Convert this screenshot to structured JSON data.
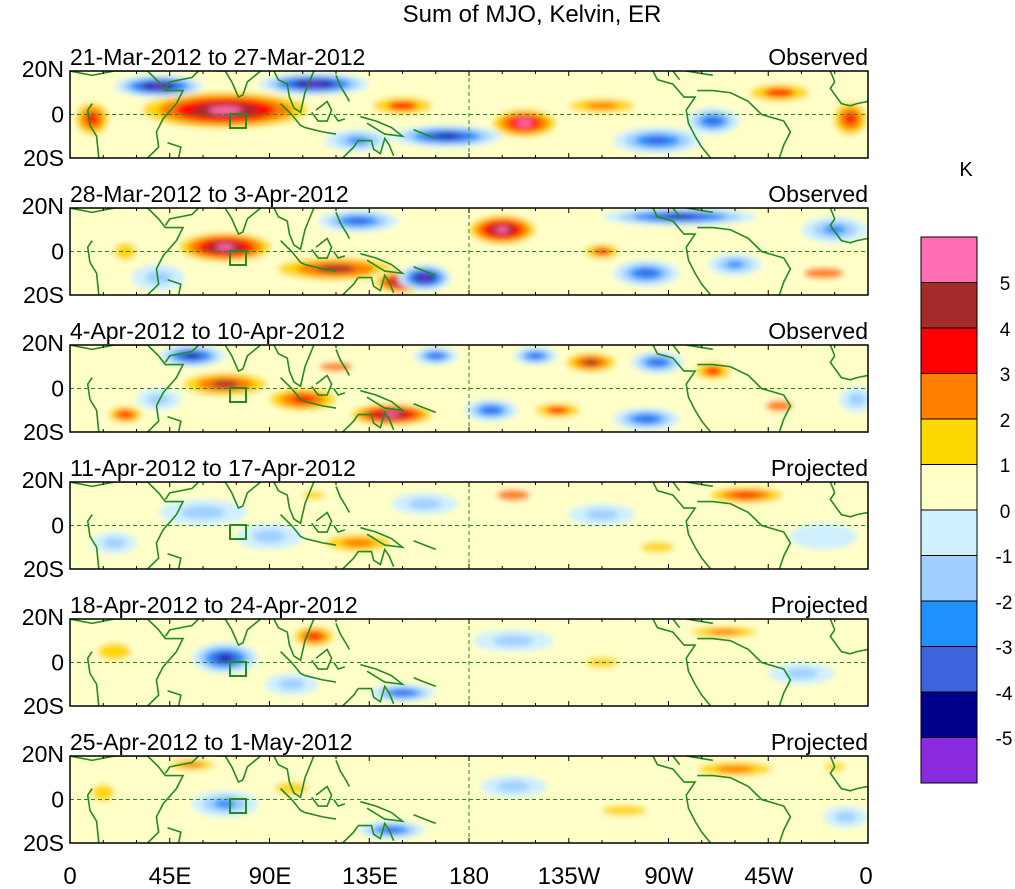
{
  "title": "Sum of MJO, Kelvin, ER",
  "unit_label": "K",
  "panels": [
    {
      "dates": "21-Mar-2012 to 27-Mar-2012",
      "status": "Observed"
    },
    {
      "dates": "28-Mar-2012 to 3-Apr-2012",
      "status": "Observed"
    },
    {
      "dates": "4-Apr-2012 to 10-Apr-2012",
      "status": "Observed"
    },
    {
      "dates": "11-Apr-2012 to 17-Apr-2012",
      "status": "Projected"
    },
    {
      "dates": "18-Apr-2012 to 24-Apr-2012",
      "status": "Projected"
    },
    {
      "dates": "25-Apr-2012 to 1-May-2012",
      "status": "Projected"
    }
  ],
  "lat_labels": [
    "20N",
    "0",
    "20S"
  ],
  "lon_labels": [
    "0",
    "45E",
    "90E",
    "135E",
    "180",
    "135W",
    "90W",
    "45W",
    "0"
  ],
  "colorbar": {
    "labels": [
      "5",
      "4",
      "3",
      "2",
      "1",
      "0",
      "-1",
      "-2",
      "-3",
      "-4",
      "-5"
    ],
    "colors": [
      "#ff6eb4",
      "#a52a2a",
      "#ff0000",
      "#ff7f00",
      "#ffd700",
      "#ffffc8",
      "#d0f0ff",
      "#a0d0ff",
      "#1e90ff",
      "#3c64dc",
      "#00008b",
      "#8a2be2"
    ]
  },
  "line_colors": {
    "coast": "#228b22",
    "equator": "#228b22"
  },
  "anomaly_blobs": [
    [
      {
        "lon": 70,
        "lat": 2,
        "rx": 45,
        "ry": 10,
        "v": 6
      },
      {
        "lon": 40,
        "lat": 13,
        "rx": 20,
        "ry": 5,
        "v": -5.5
      },
      {
        "lon": 110,
        "lat": 14,
        "rx": 25,
        "ry": 5,
        "v": -5.5
      },
      {
        "lon": 10,
        "lat": -2,
        "rx": 10,
        "ry": 10,
        "v": 3.5
      },
      {
        "lon": 150,
        "lat": 4,
        "rx": 20,
        "ry": 6,
        "v": 3
      },
      {
        "lon": 205,
        "lat": -4,
        "rx": 18,
        "ry": 8,
        "v": 5
      },
      {
        "lon": 240,
        "lat": 4,
        "rx": 22,
        "ry": 5,
        "v": 2.5
      },
      {
        "lon": 170,
        "lat": -10,
        "rx": 25,
        "ry": 5,
        "v": -4.5
      },
      {
        "lon": 265,
        "lat": -12,
        "rx": 20,
        "ry": 6,
        "v": -4
      },
      {
        "lon": 290,
        "lat": -3,
        "rx": 12,
        "ry": 6,
        "v": -4
      },
      {
        "lon": 320,
        "lat": 10,
        "rx": 20,
        "ry": 6,
        "v": 3
      },
      {
        "lon": 352,
        "lat": -2,
        "rx": 10,
        "ry": 10,
        "v": 3.5
      },
      {
        "lon": 130,
        "lat": -12,
        "rx": 15,
        "ry": 5,
        "v": -2.5
      }
    ],
    [
      {
        "lon": 70,
        "lat": 2,
        "rx": 25,
        "ry": 8,
        "v": 6
      },
      {
        "lon": 120,
        "lat": -8,
        "rx": 35,
        "ry": 7,
        "v": 4
      },
      {
        "lon": 150,
        "lat": -14,
        "rx": 15,
        "ry": 6,
        "v": 6
      },
      {
        "lon": 195,
        "lat": 10,
        "rx": 18,
        "ry": 8,
        "v": 6
      },
      {
        "lon": 160,
        "lat": -12,
        "rx": 12,
        "ry": 6,
        "v": -5.5
      },
      {
        "lon": 130,
        "lat": 14,
        "rx": 18,
        "ry": 5,
        "v": -4
      },
      {
        "lon": 275,
        "lat": 16,
        "rx": 35,
        "ry": 4,
        "v": -4.5
      },
      {
        "lon": 345,
        "lat": 10,
        "rx": 15,
        "ry": 6,
        "v": -3
      },
      {
        "lon": 240,
        "lat": 0,
        "rx": 12,
        "ry": 5,
        "v": 3
      },
      {
        "lon": 260,
        "lat": -10,
        "rx": 15,
        "ry": 6,
        "v": -4
      },
      {
        "lon": 40,
        "lat": -12,
        "rx": 12,
        "ry": 6,
        "v": -2
      },
      {
        "lon": 25,
        "lat": 0,
        "rx": 10,
        "ry": 8,
        "v": 1.5
      },
      {
        "lon": 340,
        "lat": -10,
        "rx": 18,
        "ry": 5,
        "v": 2
      },
      {
        "lon": 300,
        "lat": -6,
        "rx": 12,
        "ry": 5,
        "v": -3
      }
    ],
    [
      {
        "lon": 70,
        "lat": 2,
        "rx": 25,
        "ry": 7,
        "v": 4
      },
      {
        "lon": 105,
        "lat": -5,
        "rx": 20,
        "ry": 7,
        "v": 3.5
      },
      {
        "lon": 145,
        "lat": -12,
        "rx": 22,
        "ry": 6,
        "v": 6
      },
      {
        "lon": 25,
        "lat": -12,
        "rx": 10,
        "ry": 5,
        "v": 3.5
      },
      {
        "lon": 55,
        "lat": 15,
        "rx": 15,
        "ry": 5,
        "v": -5
      },
      {
        "lon": 165,
        "lat": 15,
        "rx": 10,
        "ry": 4,
        "v": -4
      },
      {
        "lon": 210,
        "lat": 15,
        "rx": 10,
        "ry": 4,
        "v": -4
      },
      {
        "lon": 235,
        "lat": 12,
        "rx": 15,
        "ry": 6,
        "v": 4
      },
      {
        "lon": 265,
        "lat": 12,
        "rx": 12,
        "ry": 5,
        "v": -3.5
      },
      {
        "lon": 290,
        "lat": 8,
        "rx": 12,
        "ry": 6,
        "v": 3
      },
      {
        "lon": 190,
        "lat": -10,
        "rx": 12,
        "ry": 5,
        "v": -4
      },
      {
        "lon": 220,
        "lat": -10,
        "rx": 15,
        "ry": 5,
        "v": 3
      },
      {
        "lon": 260,
        "lat": -14,
        "rx": 15,
        "ry": 5,
        "v": -4
      },
      {
        "lon": 320,
        "lat": -8,
        "rx": 12,
        "ry": 5,
        "v": 2
      },
      {
        "lon": 355,
        "lat": -5,
        "rx": 8,
        "ry": 6,
        "v": -2
      },
      {
        "lon": 40,
        "lat": -5,
        "rx": 10,
        "ry": 5,
        "v": -2
      },
      {
        "lon": 120,
        "lat": 10,
        "rx": 15,
        "ry": 4,
        "v": 2
      }
    ],
    [
      {
        "lon": 305,
        "lat": 14,
        "rx": 22,
        "ry": 5,
        "v": 3.5
      },
      {
        "lon": 130,
        "lat": -8,
        "rx": 22,
        "ry": 6,
        "v": 2.5
      },
      {
        "lon": 200,
        "lat": 14,
        "rx": 15,
        "ry": 5,
        "v": 2
      },
      {
        "lon": 60,
        "lat": 6,
        "rx": 20,
        "ry": 6,
        "v": -1.5
      },
      {
        "lon": 90,
        "lat": -5,
        "rx": 15,
        "ry": 6,
        "v": -1.2
      },
      {
        "lon": 160,
        "lat": 10,
        "rx": 15,
        "ry": 5,
        "v": -1.2
      },
      {
        "lon": 240,
        "lat": 5,
        "rx": 15,
        "ry": 5,
        "v": -1.5
      },
      {
        "lon": 340,
        "lat": -5,
        "rx": 15,
        "ry": 6,
        "v": -1
      },
      {
        "lon": 110,
        "lat": 14,
        "rx": 10,
        "ry": 4,
        "v": 1.3
      },
      {
        "lon": 20,
        "lat": -8,
        "rx": 10,
        "ry": 5,
        "v": -1.2
      },
      {
        "lon": 265,
        "lat": -10,
        "rx": 15,
        "ry": 5,
        "v": 1.2
      }
    ],
    [
      {
        "lon": 70,
        "lat": 2,
        "rx": 15,
        "ry": 7,
        "v": -4.5
      },
      {
        "lon": 110,
        "lat": 12,
        "rx": 12,
        "ry": 6,
        "v": 3.5
      },
      {
        "lon": 150,
        "lat": -14,
        "rx": 15,
        "ry": 4,
        "v": -4
      },
      {
        "lon": 295,
        "lat": 14,
        "rx": 22,
        "ry": 4,
        "v": 2.5
      },
      {
        "lon": 20,
        "lat": 5,
        "rx": 15,
        "ry": 8,
        "v": 1.3
      },
      {
        "lon": 200,
        "lat": 10,
        "rx": 18,
        "ry": 5,
        "v": -1.3
      },
      {
        "lon": 240,
        "lat": 0,
        "rx": 15,
        "ry": 5,
        "v": 1.2
      },
      {
        "lon": 330,
        "lat": -5,
        "rx": 15,
        "ry": 5,
        "v": -1.2
      },
      {
        "lon": 100,
        "lat": -10,
        "rx": 12,
        "ry": 5,
        "v": -1.5
      }
    ],
    [
      {
        "lon": 55,
        "lat": 16,
        "rx": 15,
        "ry": 4,
        "v": 2.5
      },
      {
        "lon": 300,
        "lat": 14,
        "rx": 25,
        "ry": 5,
        "v": 2.5
      },
      {
        "lon": 70,
        "lat": -2,
        "rx": 15,
        "ry": 6,
        "v": -2.5
      },
      {
        "lon": 145,
        "lat": -14,
        "rx": 15,
        "ry": 4,
        "v": -3.5
      },
      {
        "lon": 100,
        "lat": 5,
        "rx": 15,
        "ry": 6,
        "v": 1.3
      },
      {
        "lon": 15,
        "lat": 3,
        "rx": 10,
        "ry": 8,
        "v": 1.2
      },
      {
        "lon": 200,
        "lat": 6,
        "rx": 15,
        "ry": 5,
        "v": -1.1
      },
      {
        "lon": 250,
        "lat": -5,
        "rx": 20,
        "ry": 5,
        "v": 1.2
      },
      {
        "lon": 345,
        "lat": 15,
        "rx": 10,
        "ry": 4,
        "v": 1.5
      },
      {
        "lon": 350,
        "lat": -8,
        "rx": 10,
        "ry": 5,
        "v": -1.2
      }
    ]
  ]
}
